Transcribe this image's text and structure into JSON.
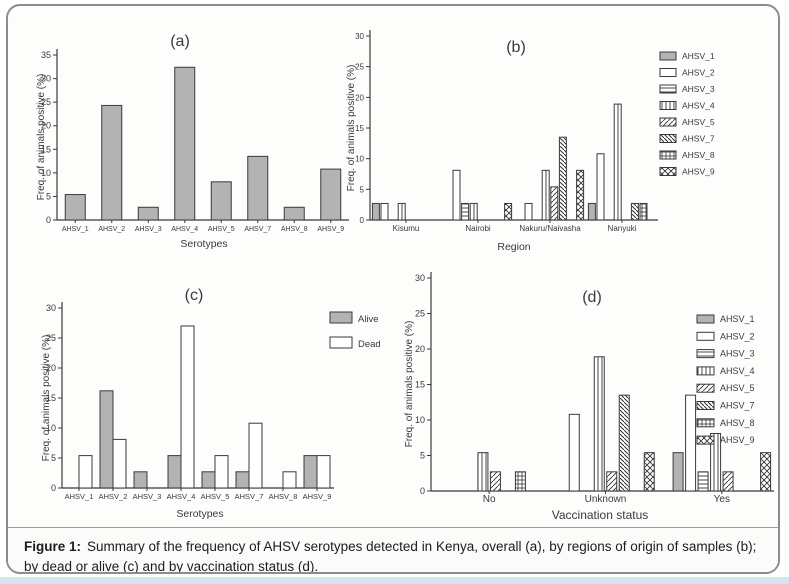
{
  "figure": {
    "caption_label": "Figure 1:",
    "caption_text": "Summary of the frequency of AHSV serotypes detected in Kenya, overall (a), by regions of origin of samples (b); by dead or alive (c) and by vaccination status (d)."
  },
  "colors": {
    "bar_gray": "#b3b3b3",
    "bar_white": "#ffffff",
    "bar_edge": "#3a3a3a",
    "axis": "#3a3a3a",
    "text": "#3a3a3a",
    "card_border": "#8c8c8c",
    "bottom_strip": "#d7e3f0"
  },
  "chart_data": [
    {
      "id": "a",
      "type": "bar",
      "title": "(a)",
      "ylabel": "Freq. of animals positive (%)",
      "xlabel": "Serotypes",
      "ylim": [
        0,
        35
      ],
      "yticks": [
        0,
        5,
        10,
        15,
        20,
        25,
        30,
        35
      ],
      "categories": [
        "AHSV_1",
        "AHSV_2",
        "AHSV_3",
        "AHSV_4",
        "AHSV_5",
        "AHSV_7",
        "AHSV_8",
        "AHSV_9"
      ],
      "values": [
        5.4,
        24.3,
        2.7,
        32.4,
        8.1,
        13.5,
        2.7,
        10.8
      ],
      "bar_style": "AHSV_1"
    },
    {
      "id": "b",
      "type": "grouped-bar",
      "title": "(b)",
      "ylabel": "Freq. of animals positive (%)",
      "xlabel": "Region",
      "ylim": [
        0,
        30
      ],
      "yticks": [
        0,
        5,
        10,
        15,
        20,
        25,
        30
      ],
      "slot_order": [
        "AHSV_1",
        "AHSV_2",
        "AHSV_3",
        "AHSV_4",
        "AHSV_5",
        "AHSV_7",
        "AHSV_8",
        "AHSV_9"
      ],
      "groups": [
        {
          "label": "Kisumu",
          "bars": {
            "AHSV_1": 2.7,
            "AHSV_2": 2.7,
            "AHSV_4": 2.7
          }
        },
        {
          "label": "Nairobi",
          "bars": {
            "AHSV_2": 8.1,
            "AHSV_3": 2.7,
            "AHSV_4": 2.7,
            "AHSV_9": 2.7
          }
        },
        {
          "label": "Nakuru/Naivasha",
          "bars": {
            "AHSV_2": 2.7,
            "AHSV_4": 8.1,
            "AHSV_5": 5.4,
            "AHSV_7": 13.5,
            "AHSV_9": 8.1
          }
        },
        {
          "label": "Nanyuki",
          "bars": {
            "AHSV_1": 2.7,
            "AHSV_2": 10.8,
            "AHSV_4": 18.9,
            "AHSV_7": 2.7,
            "AHSV_8": 2.7
          }
        }
      ],
      "legend": [
        "AHSV_1",
        "AHSV_2",
        "AHSV_3",
        "AHSV_4",
        "AHSV_5",
        "AHSV_7",
        "AHSV_8",
        "AHSV_9"
      ]
    },
    {
      "id": "c",
      "type": "paired-bar",
      "title": "(c)",
      "ylabel": "Freq. of animals positive (%)",
      "xlabel": "Serotypes",
      "ylim": [
        0,
        30
      ],
      "yticks": [
        0,
        5,
        10,
        15,
        20,
        25,
        30
      ],
      "categories": [
        "AHSV_1",
        "AHSV_2",
        "AHSV_3",
        "AHSV_4",
        "AHSV_5",
        "AHSV_7",
        "AHSV_8",
        "AHSV_9"
      ],
      "series": [
        {
          "name": "Alive",
          "style": "Alive",
          "values": [
            0,
            16.2,
            2.7,
            5.4,
            2.7,
            2.7,
            0,
            5.4
          ]
        },
        {
          "name": "Dead",
          "style": "Dead",
          "values": [
            5.4,
            8.1,
            0,
            27.0,
            5.4,
            10.8,
            2.7,
            5.4
          ]
        }
      ],
      "legend": [
        "Alive",
        "Dead"
      ]
    },
    {
      "id": "d",
      "type": "grouped-bar",
      "title": "(d)",
      "ylabel": "Freq. of animals positive (%)",
      "xlabel": "Vaccination status",
      "ylim": [
        0,
        30
      ],
      "yticks": [
        0,
        5,
        10,
        15,
        20,
        25,
        30
      ],
      "slot_order": [
        "AHSV_1",
        "AHSV_2",
        "AHSV_3",
        "AHSV_4",
        "AHSV_5",
        "AHSV_7",
        "AHSV_8",
        "AHSV_9"
      ],
      "groups": [
        {
          "label": "No",
          "bars": {
            "AHSV_4": 5.4,
            "AHSV_5": 2.7,
            "AHSV_8": 2.7
          }
        },
        {
          "label": "Unknown",
          "bars": {
            "AHSV_2": 10.8,
            "AHSV_4": 18.9,
            "AHSV_5": 2.7,
            "AHSV_7": 13.5,
            "AHSV_9": 5.4
          }
        },
        {
          "label": "Yes",
          "bars": {
            "AHSV_1": 5.4,
            "AHSV_2": 13.5,
            "AHSV_3": 2.7,
            "AHSV_4": 8.1,
            "AHSV_5": 2.7,
            "AHSV_9": 5.4
          }
        }
      ],
      "legend": [
        "AHSV_1",
        "AHSV_2",
        "AHSV_3",
        "AHSV_4",
        "AHSV_5",
        "AHSV_7",
        "AHSV_8",
        "AHSV_9"
      ]
    }
  ]
}
